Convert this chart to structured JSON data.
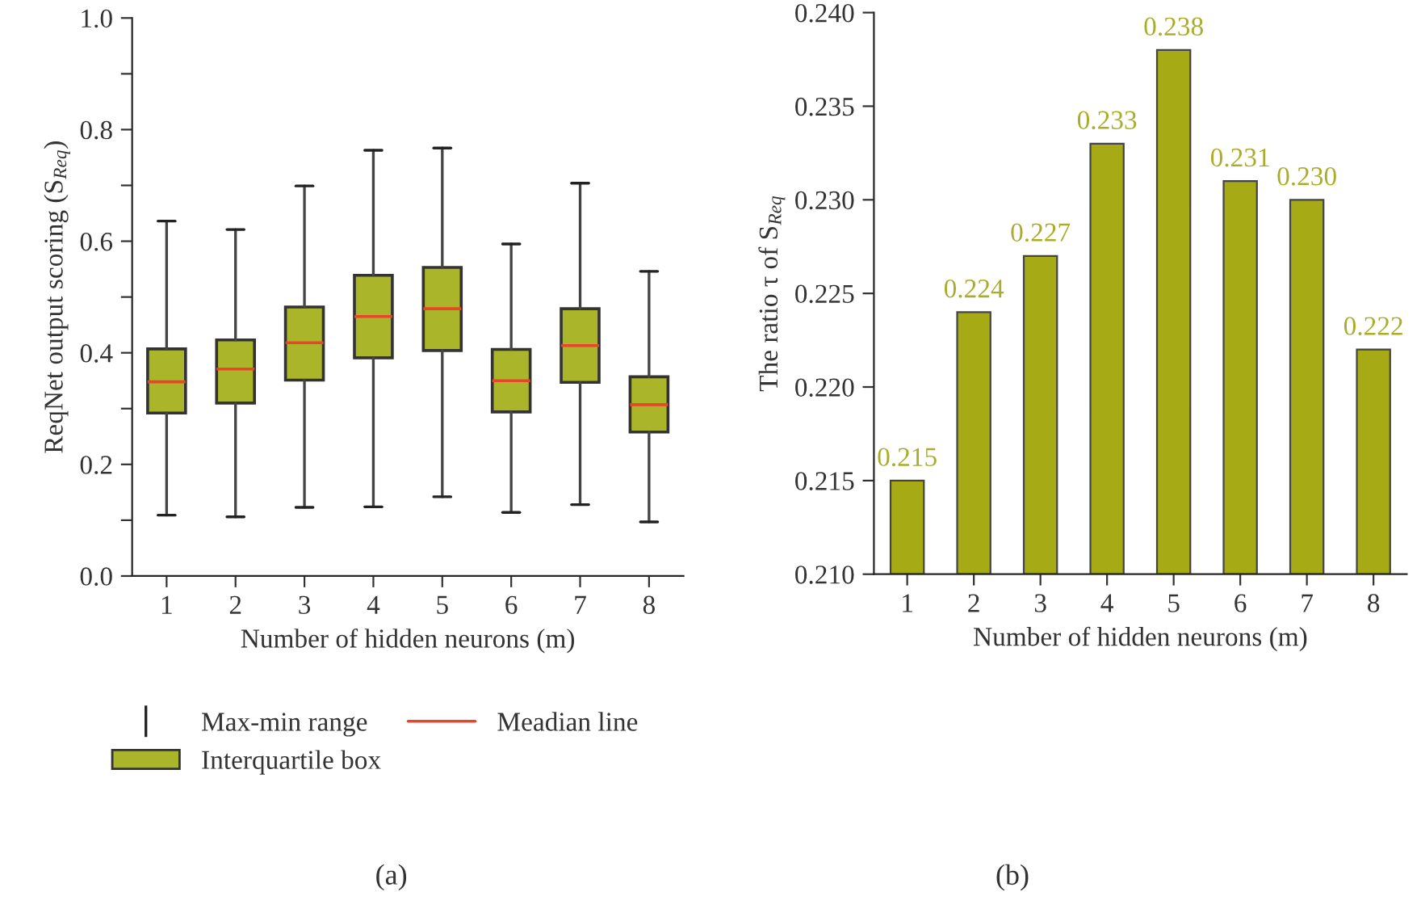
{
  "chart_data": [
    {
      "type": "box",
      "xlabel": "Number of hidden neurons (m)",
      "ylabel": "ReqNet output scoring (S$_{Req}$)",
      "categories": [
        "1",
        "2",
        "3",
        "4",
        "5",
        "6",
        "7",
        "8"
      ],
      "series": [
        {
          "name": "Interquartile box",
          "color": "#aab52a",
          "boxes": [
            {
              "low": 0.109,
              "q1": 0.292,
              "median": 0.348,
              "q3": 0.407,
              "high": 0.636
            },
            {
              "low": 0.106,
              "q1": 0.31,
              "median": 0.371,
              "q3": 0.423,
              "high": 0.621
            },
            {
              "low": 0.123,
              "q1": 0.351,
              "median": 0.418,
              "q3": 0.482,
              "high": 0.699
            },
            {
              "low": 0.124,
              "q1": 0.391,
              "median": 0.465,
              "q3": 0.539,
              "high": 0.763
            },
            {
              "low": 0.142,
              "q1": 0.404,
              "median": 0.479,
              "q3": 0.553,
              "high": 0.767
            },
            {
              "low": 0.114,
              "q1": 0.294,
              "median": 0.35,
              "q3": 0.406,
              "high": 0.595
            },
            {
              "low": 0.128,
              "q1": 0.347,
              "median": 0.413,
              "q3": 0.479,
              "high": 0.704
            },
            {
              "low": 0.097,
              "q1": 0.258,
              "median": 0.307,
              "q3": 0.357,
              "high": 0.546
            }
          ]
        }
      ],
      "ylim": [
        0,
        1.0
      ],
      "yticks": [
        {
          "value": 0,
          "label": "0.0"
        },
        {
          "value": 0.1,
          "label": null
        },
        {
          "value": 0.2,
          "label": "0.2"
        },
        {
          "value": 0.3,
          "label": null
        },
        {
          "value": 0.4,
          "label": "0.4"
        },
        {
          "value": 0.5,
          "label": null
        },
        {
          "value": 0.6,
          "label": "0.6"
        },
        {
          "value": 0.7,
          "label": null
        },
        {
          "value": 0.8,
          "label": "0.8"
        },
        {
          "value": 0.9,
          "label": null
        },
        {
          "value": 1.0,
          "label": "1.0"
        }
      ],
      "annotations": [
        "Max-min range",
        "Meadian line",
        "(a)"
      ],
      "legend": "bottom",
      "grid": false
    },
    {
      "type": "bar",
      "xlabel": "Number of hidden neurons (m)",
      "ylabel": "The ratio τ of S$_{Req}$",
      "categories": [
        "1",
        "2",
        "3",
        "4",
        "5",
        "6",
        "7",
        "8"
      ],
      "values": [
        0.215,
        0.224,
        0.227,
        0.233,
        0.238,
        0.231,
        0.23,
        0.222
      ],
      "value_labels": [
        "0.215",
        "0.224",
        "0.227",
        "0.233",
        "0.238",
        "0.231",
        "0.230",
        "0.222"
      ],
      "color": "#a6aa14",
      "ylim": [
        0.21,
        0.24
      ],
      "yticks": [
        {
          "value": 0.21,
          "label": "0.210"
        },
        {
          "value": 0.215,
          "label": "0.215"
        },
        {
          "value": 0.22,
          "label": "0.220"
        },
        {
          "value": 0.225,
          "label": "0.225"
        },
        {
          "value": 0.23,
          "label": "0.230"
        },
        {
          "value": 0.235,
          "label": "0.235"
        },
        {
          "value": 0.24,
          "label": "0.240"
        }
      ],
      "annotations": [
        "(b)"
      ],
      "grid": false
    }
  ]
}
